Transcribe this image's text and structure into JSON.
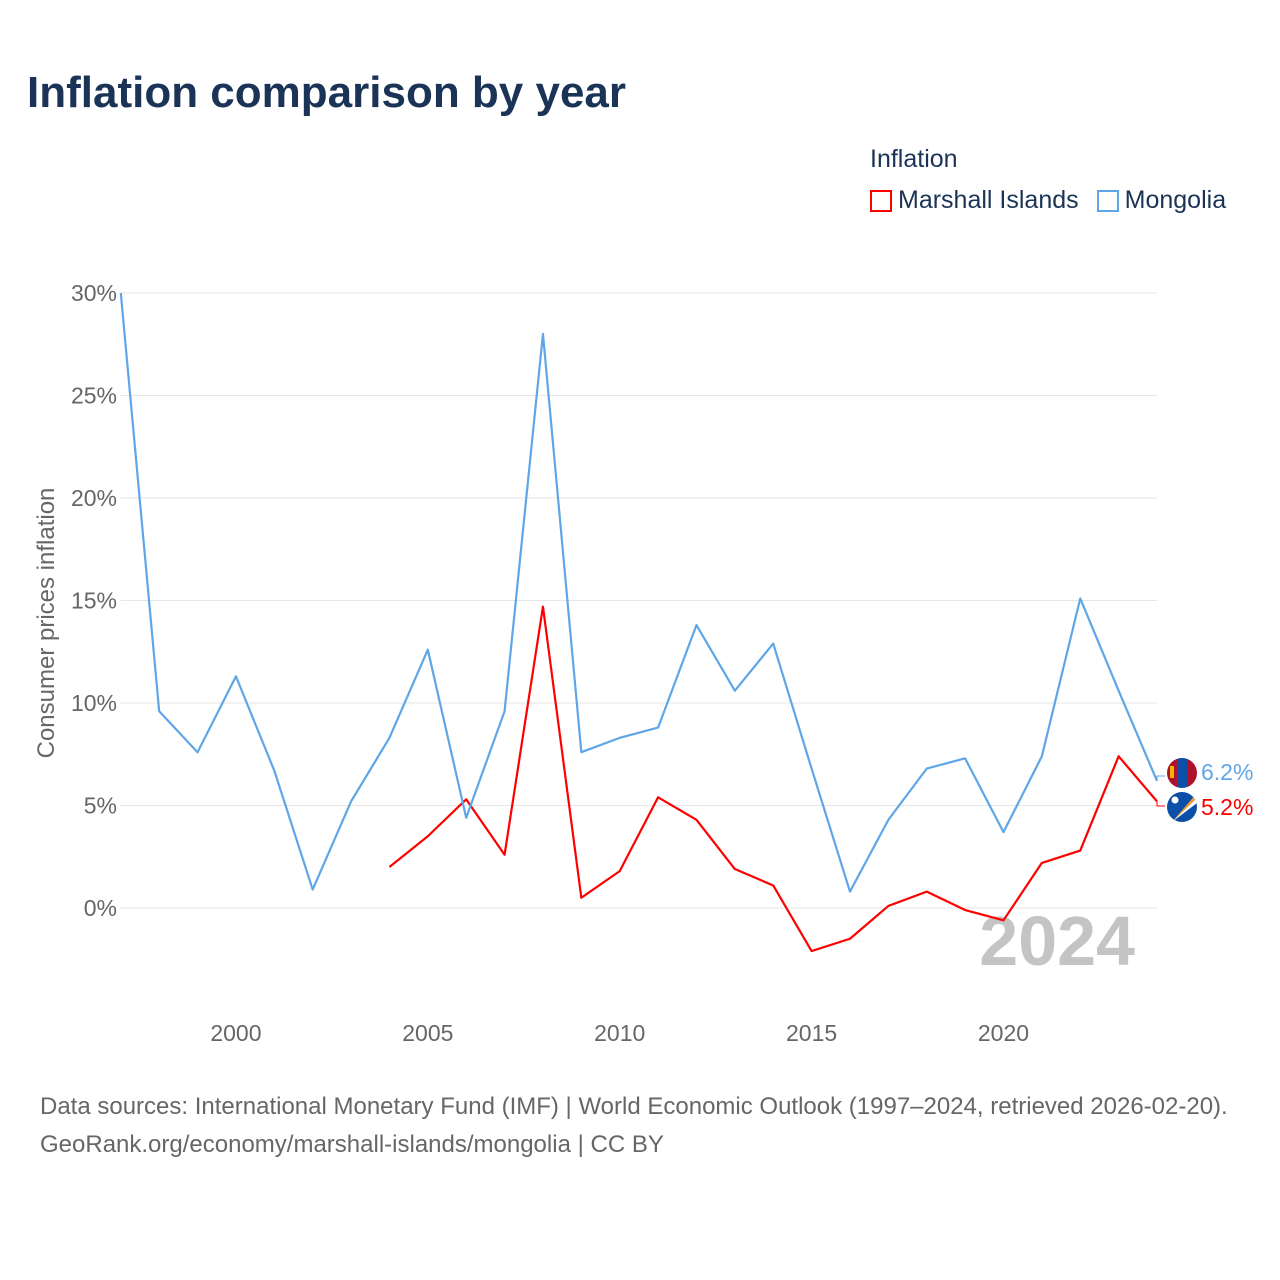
{
  "chart_data": {
    "type": "line",
    "title": "Inflation comparison by year",
    "ylabel": "Consumer prices inflation",
    "xlabel": "",
    "xlim": [
      1997,
      2024
    ],
    "ylim": [
      -5,
      30
    ],
    "x_ticks": [
      2000,
      2005,
      2010,
      2015,
      2020
    ],
    "y_ticks": [
      0,
      5,
      10,
      15,
      20,
      25,
      30
    ],
    "y_tick_labels": [
      "0%",
      "5%",
      "10%",
      "15%",
      "20%",
      "25%",
      "30%"
    ],
    "grid": true,
    "legend_title": "Inflation",
    "legend_position": "top-right",
    "watermark_year": "2024",
    "series": [
      {
        "name": "Marshall Islands",
        "color": "#ff0000",
        "end_label": "5.2%",
        "flag": "marshall-islands-flag",
        "x": [
          2004,
          2005,
          2006,
          2007,
          2008,
          2009,
          2010,
          2011,
          2012,
          2013,
          2014,
          2015,
          2016,
          2017,
          2018,
          2019,
          2020,
          2021,
          2022,
          2023,
          2024
        ],
        "values": [
          2.0,
          3.5,
          5.3,
          2.6,
          14.7,
          0.5,
          1.8,
          5.4,
          4.3,
          1.9,
          1.1,
          -2.1,
          -1.5,
          0.1,
          0.8,
          -0.1,
          -0.6,
          2.2,
          2.8,
          7.4,
          5.2
        ]
      },
      {
        "name": "Mongolia",
        "color": "#5ea6e8",
        "end_label": "6.2%",
        "flag": "mongolia-flag",
        "x": [
          1997,
          1998,
          1999,
          2000,
          2001,
          2002,
          2003,
          2004,
          2005,
          2006,
          2007,
          2008,
          2009,
          2010,
          2011,
          2012,
          2013,
          2014,
          2015,
          2016,
          2017,
          2018,
          2019,
          2020,
          2021,
          2022,
          2023,
          2024
        ],
        "values": [
          30.0,
          9.6,
          7.6,
          11.3,
          6.7,
          0.9,
          5.2,
          8.3,
          12.6,
          4.4,
          9.6,
          28.0,
          7.6,
          8.3,
          8.8,
          13.8,
          10.6,
          12.9,
          6.8,
          0.8,
          4.3,
          6.8,
          7.3,
          3.7,
          7.4,
          15.1,
          10.6,
          6.2
        ]
      }
    ]
  },
  "footer": {
    "source": "Data sources: International Monetary Fund (IMF) | World Economic Outlook (1997–2024, retrieved 2026-02-20).",
    "credit": "GeoRank.org/economy/marshall-islands/mongolia | CC BY"
  }
}
